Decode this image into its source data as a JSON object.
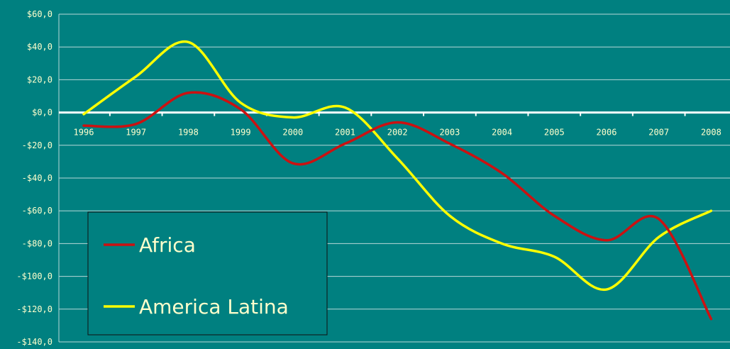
{
  "chart_data": {
    "type": "line",
    "categories": [
      "1996",
      "1997",
      "1998",
      "1999",
      "2000",
      "2001",
      "2002",
      "2003",
      "2004",
      "2005",
      "2006",
      "2007",
      "2008"
    ],
    "ylim": [
      -140,
      60
    ],
    "y_ticks": [
      60,
      40,
      20,
      0,
      -20,
      -40,
      -60,
      -80,
      -100,
      -120,
      -140
    ],
    "y_tick_labels": [
      "$60,0",
      "$40,0",
      "$20,0",
      "$0,0",
      "-$20,0",
      "-$40,0",
      "-$60,0",
      "-$80,0",
      "-$100,0",
      "-$120,0",
      "-$140,0"
    ],
    "grid": true,
    "legend_position": "bottom-left",
    "series": [
      {
        "name": "Africa",
        "color": "#cc1111",
        "values": [
          -8,
          -7,
          12,
          2,
          -31,
          -19,
          -6,
          -19,
          -37,
          -63,
          -78,
          -65,
          -126
        ]
      },
      {
        "name": "America Latina",
        "color": "#ffff00",
        "values": [
          -1,
          22,
          43,
          6,
          -3,
          3,
          -28,
          -63,
          -80,
          -88,
          -108,
          -76,
          -60
        ]
      }
    ]
  },
  "colors": {
    "background": "#008080",
    "gridline": "#b8d8d8",
    "zero_axis": "#ffffff",
    "text": "#ffffcc"
  }
}
